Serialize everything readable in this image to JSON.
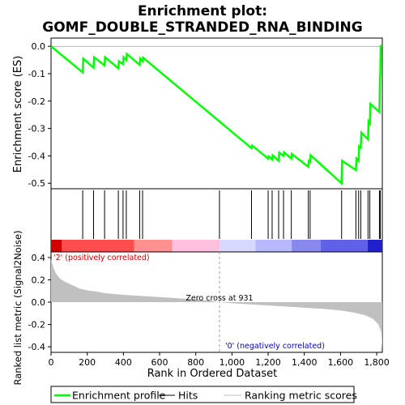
{
  "chart_data": {
    "type": "line",
    "title_line1": "Enrichment plot:",
    "title_line2": "GOMF_DOUBLE_STRANDED_RNA_BINDING",
    "es_panel": {
      "ylabel": "Enrichment score (ES)",
      "ylim": [
        -0.52,
        0.03
      ],
      "yticks": [
        0.0,
        -0.1,
        -0.2,
        -0.3,
        -0.4,
        -0.5
      ],
      "ytick_labels": [
        "0.0",
        "-0.1",
        "-0.2",
        "-0.3",
        "-0.4",
        "-0.5"
      ],
      "line_color": "#00ff00",
      "profile": [
        [
          0,
          0.0
        ],
        [
          175,
          -0.095
        ],
        [
          178,
          -0.045
        ],
        [
          235,
          -0.078
        ],
        [
          238,
          -0.04
        ],
        [
          296,
          -0.07
        ],
        [
          299,
          -0.04
        ],
        [
          372,
          -0.08
        ],
        [
          375,
          -0.055
        ],
        [
          398,
          -0.065
        ],
        [
          401,
          -0.04
        ],
        [
          416,
          -0.05
        ],
        [
          419,
          -0.028
        ],
        [
          490,
          -0.068
        ],
        [
          493,
          -0.045
        ],
        [
          506,
          -0.055
        ],
        [
          509,
          -0.042
        ],
        [
          1108,
          -0.372
        ],
        [
          1111,
          -0.362
        ],
        [
          1200,
          -0.41
        ],
        [
          1203,
          -0.402
        ],
        [
          1222,
          -0.413
        ],
        [
          1225,
          -0.398
        ],
        [
          1258,
          -0.418
        ],
        [
          1261,
          -0.388
        ],
        [
          1285,
          -0.4
        ],
        [
          1288,
          -0.387
        ],
        [
          1328,
          -0.41
        ],
        [
          1331,
          -0.393
        ],
        [
          1422,
          -0.44
        ],
        [
          1425,
          -0.418
        ],
        [
          1432,
          -0.422
        ],
        [
          1435,
          -0.398
        ],
        [
          1606,
          -0.5
        ],
        [
          1609,
          -0.418
        ],
        [
          1685,
          -0.452
        ],
        [
          1688,
          -0.41
        ],
        [
          1700,
          -0.418
        ],
        [
          1703,
          -0.365
        ],
        [
          1712,
          -0.37
        ],
        [
          1715,
          -0.315
        ],
        [
          1752,
          -0.34
        ],
        [
          1755,
          -0.275
        ],
        [
          1762,
          -0.282
        ],
        [
          1765,
          -0.21
        ],
        [
          1815,
          -0.24
        ],
        [
          1818,
          -0.12
        ],
        [
          1820,
          -0.1
        ],
        [
          1822,
          0.0
        ],
        [
          1830,
          0.005
        ]
      ]
    },
    "hits": [
      175,
      235,
      296,
      372,
      398,
      416,
      490,
      506,
      931,
      1108,
      1200,
      1222,
      1258,
      1285,
      1328,
      1422,
      1432,
      1606,
      1685,
      1700,
      1712,
      1752,
      1762,
      1815,
      1820
    ],
    "ranking_panel": {
      "ylabel": "Ranked list metric (Signal2Noise)",
      "ylim": [
        -0.45,
        0.45
      ],
      "yticks": [
        0.4,
        0.2,
        0.0,
        -0.2,
        -0.4
      ],
      "ytick_labels": [
        "0.4",
        "0.2",
        "0.0",
        "-0.2",
        "-0.4"
      ],
      "fill_color": "#c0c0c0",
      "metric_curve": [
        [
          0,
          0.38
        ],
        [
          15,
          0.3
        ],
        [
          30,
          0.25
        ],
        [
          50,
          0.21
        ],
        [
          80,
          0.18
        ],
        [
          120,
          0.15
        ],
        [
          160,
          0.12
        ],
        [
          200,
          0.105
        ],
        [
          250,
          0.095
        ],
        [
          300,
          0.08
        ],
        [
          400,
          0.065
        ],
        [
          500,
          0.055
        ],
        [
          600,
          0.045
        ],
        [
          700,
          0.035
        ],
        [
          800,
          0.025
        ],
        [
          880,
          0.012
        ],
        [
          931,
          0.0
        ],
        [
          1000,
          -0.01
        ],
        [
          1100,
          -0.02
        ],
        [
          1200,
          -0.03
        ],
        [
          1300,
          -0.04
        ],
        [
          1400,
          -0.05
        ],
        [
          1500,
          -0.06
        ],
        [
          1600,
          -0.075
        ],
        [
          1680,
          -0.095
        ],
        [
          1740,
          -0.12
        ],
        [
          1780,
          -0.15
        ],
        [
          1810,
          -0.2
        ],
        [
          1825,
          -0.27
        ],
        [
          1831,
          -0.42
        ]
      ],
      "zero_cross_label": "Zero cross at 931",
      "zero_cross": 931,
      "positive_label": "'2' (positively correlated)",
      "negative_label": "'0' (negatively correlated)",
      "positive_color": "#cc0000",
      "negative_color": "#0000cc"
    },
    "xlabel": "Rank in Ordered Dataset",
    "xlim": [
      0,
      1831
    ],
    "xticks": [
      0,
      200,
      400,
      600,
      800,
      1000,
      1200,
      1400,
      1600,
      1800
    ],
    "xtick_labels": [
      "0",
      "200",
      "400",
      "600",
      "800",
      "1,000",
      "1,200",
      "1,400",
      "1,600",
      "1,800"
    ],
    "heatmap_bar": [
      {
        "from": 0,
        "to": 60,
        "color": "#d40000"
      },
      {
        "from": 60,
        "to": 460,
        "color": "#ff4c4c"
      },
      {
        "from": 460,
        "to": 670,
        "color": "#ff9090"
      },
      {
        "from": 670,
        "to": 931,
        "color": "#ffc0e0"
      },
      {
        "from": 931,
        "to": 1130,
        "color": "#d8d8ff"
      },
      {
        "from": 1130,
        "to": 1330,
        "color": "#b8b8ff"
      },
      {
        "from": 1330,
        "to": 1490,
        "color": "#8888ee"
      },
      {
        "from": 1490,
        "to": 1750,
        "color": "#6060e8"
      },
      {
        "from": 1750,
        "to": 1831,
        "color": "#2020cc"
      }
    ],
    "legend": [
      {
        "label": "Enrichment profile",
        "color": "#00ff00",
        "kind": "thick-line"
      },
      {
        "label": "Hits",
        "color": "#000000",
        "kind": "line"
      },
      {
        "label": "Ranking metric scores",
        "color": "#c0c0c0",
        "kind": "line"
      }
    ]
  }
}
